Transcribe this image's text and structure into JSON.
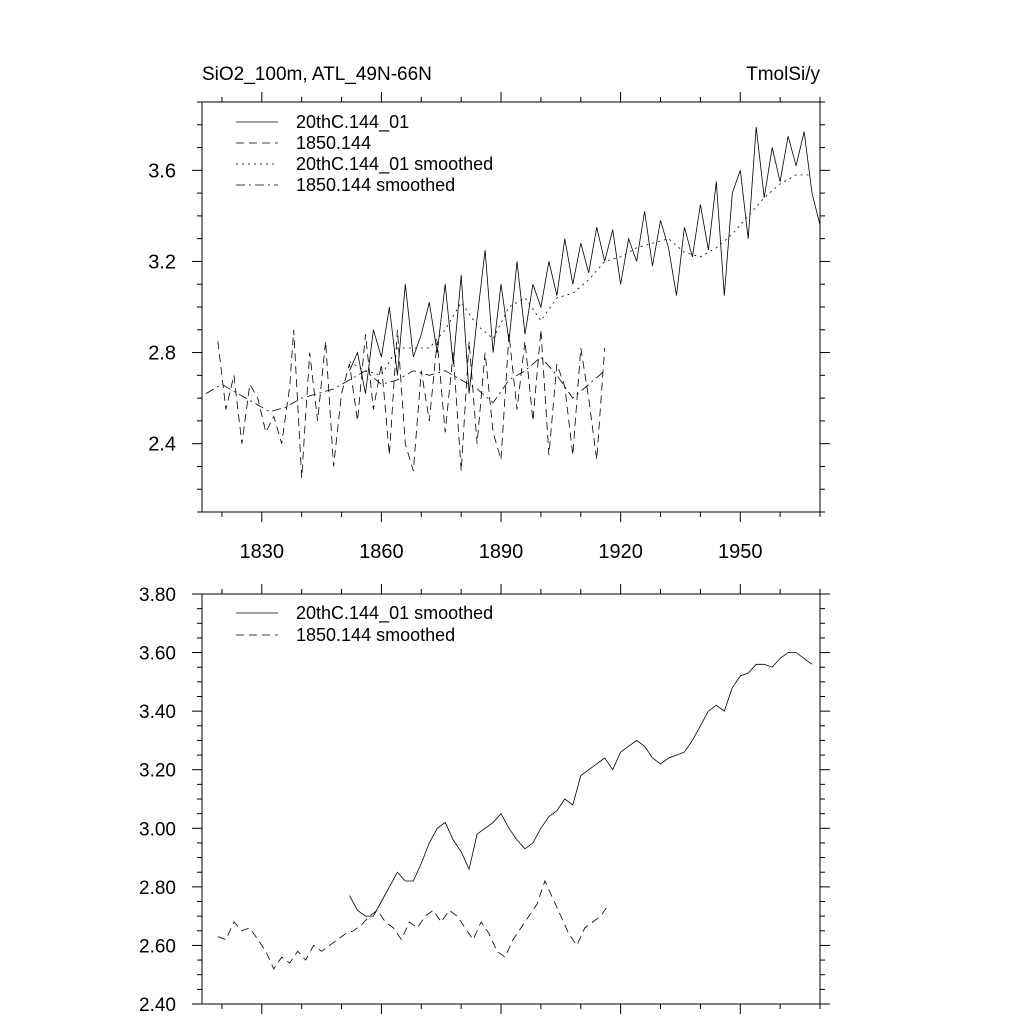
{
  "chart_data": [
    {
      "type": "line",
      "title_left": "SiO2_100m, ATL_49N-66N",
      "title_right": "TmolSi/y",
      "xlabel": "",
      "ylabel": "",
      "xlim": [
        1815,
        1970
      ],
      "ylim": [
        2.1,
        3.9
      ],
      "x_ticks": [
        1830,
        1860,
        1890,
        1920,
        1950
      ],
      "x_tick_labels": [
        "1830",
        "1860",
        "1890",
        "1920",
        "1950"
      ],
      "y_ticks": [
        2.4,
        2.8,
        3.2,
        3.6
      ],
      "y_tick_labels": [
        "2.4",
        "2.8",
        "3.2",
        "3.6"
      ],
      "legend": [
        {
          "label": "20thC.144_01",
          "dash": "solid"
        },
        {
          "label": "1850.144",
          "dash": "dash"
        },
        {
          "label": "20thC.144_01 smoothed",
          "dash": "dot"
        },
        {
          "label": "1850.144 smoothed",
          "dash": "dashdot"
        }
      ],
      "series": [
        {
          "name": "20thC.144_01",
          "dash": "solid",
          "x": [
            1852,
            1854,
            1856,
            1858,
            1860,
            1862,
            1864,
            1866,
            1868,
            1870,
            1872,
            1874,
            1876,
            1878,
            1880,
            1882,
            1884,
            1886,
            1888,
            1890,
            1892,
            1894,
            1896,
            1898,
            1900,
            1902,
            1904,
            1906,
            1908,
            1910,
            1912,
            1914,
            1916,
            1918,
            1920,
            1922,
            1924,
            1926,
            1928,
            1930,
            1932,
            1934,
            1936,
            1938,
            1940,
            1942,
            1944,
            1946,
            1948,
            1950,
            1952,
            1954,
            1956,
            1958,
            1960,
            1962,
            1964,
            1966,
            1968,
            1970
          ],
          "y": [
            2.72,
            2.8,
            2.62,
            2.9,
            2.78,
            3.0,
            2.7,
            3.1,
            2.78,
            2.88,
            3.02,
            2.8,
            3.1,
            2.75,
            3.14,
            2.62,
            2.95,
            3.25,
            2.8,
            3.1,
            2.85,
            3.2,
            2.88,
            3.1,
            3.0,
            3.2,
            3.05,
            3.3,
            3.1,
            3.28,
            3.15,
            3.35,
            3.2,
            3.34,
            3.1,
            3.3,
            3.2,
            3.42,
            3.18,
            3.38,
            3.26,
            3.05,
            3.35,
            3.22,
            3.45,
            3.25,
            3.55,
            3.05,
            3.5,
            3.6,
            3.3,
            3.79,
            3.48,
            3.7,
            3.55,
            3.75,
            3.62,
            3.77,
            3.5,
            3.36
          ]
        },
        {
          "name": "1850.144",
          "dash": "dash",
          "x": [
            1819,
            1821,
            1823,
            1825,
            1827,
            1829,
            1831,
            1833,
            1835,
            1837,
            1838,
            1840,
            1842,
            1844,
            1846,
            1848,
            1850,
            1852,
            1854,
            1856,
            1858,
            1860,
            1862,
            1864,
            1866,
            1868,
            1870,
            1872,
            1874,
            1876,
            1878,
            1880,
            1882,
            1884,
            1886,
            1888,
            1890,
            1892,
            1894,
            1896,
            1898,
            1900,
            1902,
            1904,
            1906,
            1908,
            1910,
            1912,
            1914,
            1916
          ],
          "y": [
            2.85,
            2.55,
            2.7,
            2.4,
            2.66,
            2.6,
            2.45,
            2.52,
            2.4,
            2.65,
            2.9,
            2.25,
            2.8,
            2.5,
            2.85,
            2.3,
            2.62,
            2.75,
            2.5,
            2.88,
            2.55,
            2.75,
            2.35,
            2.9,
            2.4,
            2.28,
            2.72,
            2.5,
            2.85,
            2.45,
            2.8,
            2.28,
            2.85,
            2.4,
            2.8,
            2.45,
            2.33,
            2.88,
            2.55,
            2.85,
            2.5,
            2.9,
            2.35,
            2.75,
            2.65,
            2.35,
            2.82,
            2.6,
            2.33,
            2.82
          ]
        },
        {
          "name": "20thC.144_01 smoothed",
          "dash": "dot",
          "x": [
            1852,
            1856,
            1860,
            1864,
            1868,
            1872,
            1876,
            1880,
            1884,
            1888,
            1892,
            1896,
            1900,
            1904,
            1908,
            1912,
            1916,
            1920,
            1924,
            1928,
            1932,
            1936,
            1940,
            1944,
            1948,
            1952,
            1956,
            1960,
            1964,
            1968
          ],
          "y": [
            2.76,
            2.72,
            2.7,
            2.82,
            2.82,
            2.82,
            2.9,
            3.02,
            2.92,
            2.86,
            3.0,
            3.04,
            2.94,
            3.04,
            3.06,
            3.12,
            3.2,
            3.22,
            3.26,
            3.28,
            3.3,
            3.24,
            3.22,
            3.26,
            3.32,
            3.4,
            3.48,
            3.54,
            3.58,
            3.58
          ]
        },
        {
          "name": "1850.144 smoothed",
          "dash": "dashdot",
          "x": [
            1816,
            1820,
            1824,
            1828,
            1832,
            1836,
            1840,
            1844,
            1848,
            1852,
            1856,
            1860,
            1864,
            1868,
            1872,
            1876,
            1880,
            1884,
            1888,
            1892,
            1896,
            1900,
            1904,
            1908,
            1912,
            1916
          ],
          "y": [
            2.62,
            2.66,
            2.62,
            2.58,
            2.54,
            2.56,
            2.6,
            2.62,
            2.64,
            2.68,
            2.72,
            2.66,
            2.68,
            2.72,
            2.7,
            2.72,
            2.68,
            2.64,
            2.58,
            2.68,
            2.72,
            2.78,
            2.7,
            2.6,
            2.66,
            2.72
          ]
        }
      ]
    },
    {
      "type": "line",
      "title_left": "",
      "title_right": "",
      "xlabel": "",
      "ylabel": "",
      "xlim": [
        1815,
        1970
      ],
      "ylim": [
        2.4,
        3.8
      ],
      "x_ticks": [
        1830,
        1860,
        1890,
        1920,
        1950
      ],
      "y_ticks": [
        2.4,
        2.6,
        2.8,
        3.0,
        3.2,
        3.4,
        3.6,
        3.8
      ],
      "y_tick_labels": [
        "2.40",
        "2.60",
        "2.80",
        "3.00",
        "3.20",
        "3.40",
        "3.60",
        "3.80"
      ],
      "legend": [
        {
          "label": "20thC.144_01 smoothed",
          "dash": "solid"
        },
        {
          "label": "1850.144 smoothed",
          "dash": "dash"
        }
      ],
      "series": [
        {
          "name": "20thC.144_01 smoothed",
          "dash": "solid",
          "x": [
            1852,
            1854,
            1856,
            1858,
            1860,
            1862,
            1864,
            1866,
            1868,
            1870,
            1872,
            1874,
            1876,
            1878,
            1880,
            1882,
            1884,
            1886,
            1888,
            1890,
            1892,
            1894,
            1896,
            1898,
            1900,
            1902,
            1904,
            1906,
            1908,
            1910,
            1912,
            1914,
            1916,
            1918,
            1920,
            1922,
            1924,
            1926,
            1928,
            1930,
            1932,
            1934,
            1936,
            1938,
            1940,
            1942,
            1944,
            1946,
            1948,
            1950,
            1952,
            1954,
            1956,
            1958,
            1960,
            1962,
            1964,
            1966,
            1968
          ],
          "y": [
            2.77,
            2.72,
            2.7,
            2.7,
            2.75,
            2.8,
            2.85,
            2.82,
            2.82,
            2.88,
            2.95,
            3.0,
            3.02,
            2.96,
            2.92,
            2.86,
            2.98,
            3.0,
            3.02,
            3.05,
            3.0,
            2.96,
            2.93,
            2.95,
            3.0,
            3.04,
            3.06,
            3.1,
            3.08,
            3.18,
            3.2,
            3.22,
            3.24,
            3.2,
            3.26,
            3.28,
            3.3,
            3.28,
            3.24,
            3.22,
            3.24,
            3.25,
            3.26,
            3.3,
            3.35,
            3.4,
            3.42,
            3.4,
            3.48,
            3.52,
            3.53,
            3.56,
            3.56,
            3.55,
            3.58,
            3.6,
            3.6,
            3.58,
            3.56
          ]
        },
        {
          "name": "1850.144 smoothed",
          "dash": "dash",
          "x": [
            1819,
            1821,
            1823,
            1825,
            1827,
            1829,
            1831,
            1833,
            1835,
            1837,
            1839,
            1841,
            1843,
            1845,
            1847,
            1849,
            1851,
            1853,
            1855,
            1857,
            1859,
            1861,
            1863,
            1865,
            1867,
            1869,
            1871,
            1873,
            1875,
            1877,
            1879,
            1881,
            1883,
            1885,
            1887,
            1889,
            1891,
            1893,
            1895,
            1897,
            1899,
            1901,
            1903,
            1905,
            1907,
            1909,
            1911,
            1913,
            1915,
            1917
          ],
          "y": [
            2.63,
            2.62,
            2.68,
            2.65,
            2.66,
            2.62,
            2.58,
            2.52,
            2.56,
            2.54,
            2.58,
            2.55,
            2.6,
            2.58,
            2.6,
            2.62,
            2.64,
            2.65,
            2.67,
            2.7,
            2.72,
            2.68,
            2.66,
            2.62,
            2.68,
            2.66,
            2.7,
            2.72,
            2.68,
            2.72,
            2.7,
            2.66,
            2.62,
            2.68,
            2.64,
            2.58,
            2.56,
            2.62,
            2.66,
            2.7,
            2.74,
            2.82,
            2.76,
            2.7,
            2.64,
            2.6,
            2.66,
            2.68,
            2.7,
            2.74
          ]
        }
      ]
    }
  ]
}
